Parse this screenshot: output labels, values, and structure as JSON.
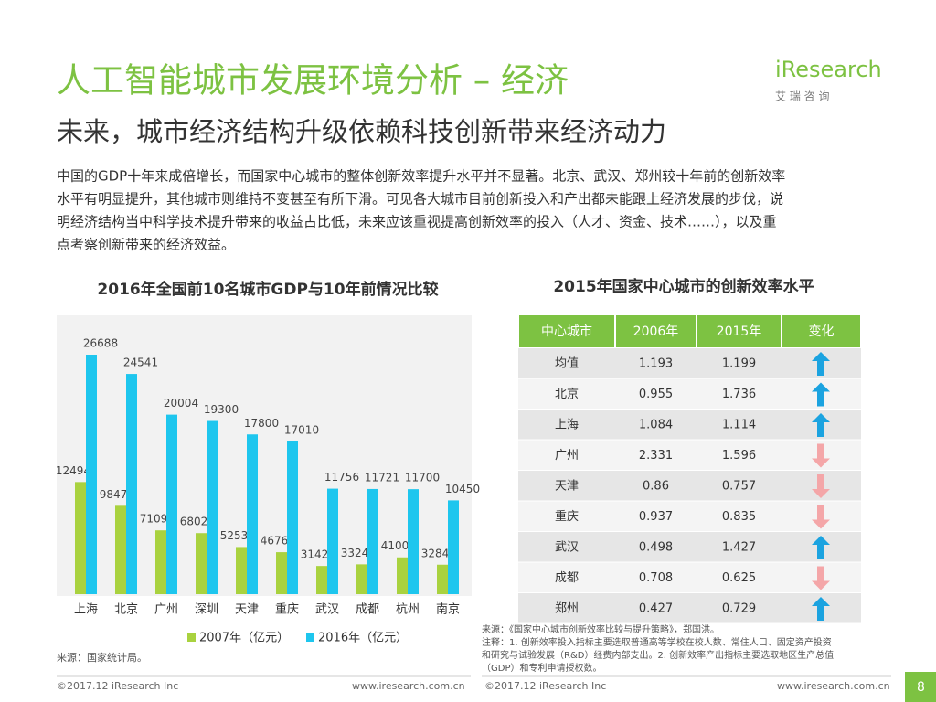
{
  "header": {
    "title": "人工智能城市发展环境分析 – 经济",
    "subtitle": "未来，城市经济结构升级依赖科技创新带来经济动力",
    "logo": {
      "brand": "iResearch",
      "tagline": "艾 瑞 咨 询"
    }
  },
  "intro": {
    "lines": [
      "中国的GDP十年来成倍增长，而国家中心城市的整体创新效率提升水平并不显著。北京、武汉、郑州较十年前的创新效率",
      "水平有明显提升，其他城市则维持不变甚至有所下滑。可见各大城市目前创新投入和产出都未能跟上经济发展的步伐，说",
      "明经济结构当中科学技术提升带来的收益占比低，未来应该重视提高创新效率的投入（人才、资金、技术……），以及重",
      "点考察创新带来的经济效益。"
    ]
  },
  "chart_data": {
    "type": "bar",
    "title": "2016年全国前10名城市GDP与10年前情况比较",
    "categories": [
      "上海",
      "北京",
      "广州",
      "深圳",
      "天津",
      "重庆",
      "武汉",
      "成都",
      "杭州",
      "南京"
    ],
    "series": [
      {
        "name": "2007年（亿元）",
        "color": "#a9d23f",
        "values": [
          12494,
          9847,
          7109,
          6802,
          5253,
          4676,
          3142,
          3324,
          4100,
          3284
        ]
      },
      {
        "name": "2016年（亿元）",
        "color": "#1ec6ee",
        "values": [
          26688,
          24541,
          20004,
          19300,
          17800,
          17010,
          11756,
          11721,
          11700,
          10450
        ]
      }
    ],
    "legend": "bottom",
    "source": "来源：国家统计局。"
  },
  "table": {
    "title": "2015年国家中心城市的创新效率水平",
    "header": [
      "中心城市",
      "2006年",
      "2015年",
      "变化"
    ],
    "rows": [
      [
        "均值",
        "1.193",
        "1.199"
      ],
      [
        "北京",
        "0.955",
        "1.736"
      ],
      [
        "上海",
        "1.084",
        "1.114"
      ],
      [
        "广州",
        "2.331",
        "1.596"
      ],
      [
        "天津",
        "0.86",
        "0.757"
      ],
      [
        "重庆",
        "0.937",
        "0.835"
      ],
      [
        "武汉",
        "0.498",
        "1.427"
      ],
      [
        "成都",
        "0.708",
        "0.625"
      ],
      [
        "郑州",
        "0.427",
        "0.729"
      ]
    ],
    "up_color": "#1ba3e0",
    "down_color": "#f4a6a8",
    "source": [
      "来源：《国家中心城市创新效率比较与提升策略》，郑国洪。",
      "注释：1. 创新效率投入指标主要选取普通高等学校在校人数、常住人口、固定资产投资",
      "和研究与试验发展（R&D）经费内部支出。2. 创新效率产出指标主要选取地区生产总值",
      "（GDP）和专利申请授权数。"
    ]
  },
  "footer": {
    "left": {
      "copyright": "©2017.12 iResearch Inc",
      "url": "www.iresearch.com.cn"
    },
    "right": {
      "copyright": "©2017.12 iResearch Inc",
      "url": "www.iresearch.com.cn"
    },
    "page": "8"
  }
}
